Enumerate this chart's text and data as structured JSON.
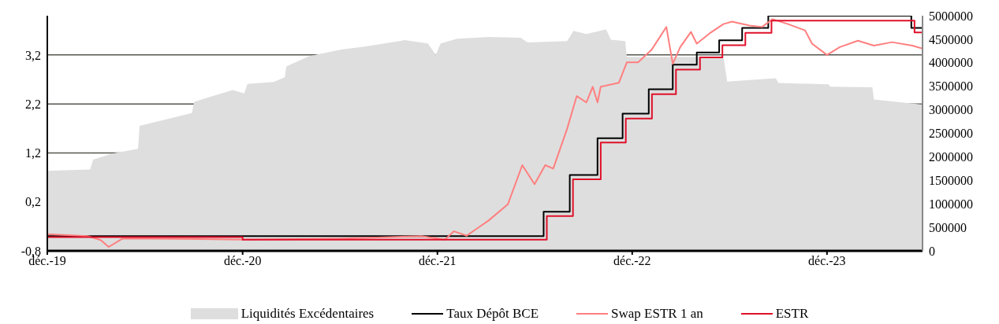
{
  "chart_data": {
    "type": "line",
    "xlim": [
      "2019-12-01",
      "2024-05-28"
    ],
    "xticks": [
      {
        "value": "2019-12-01",
        "label": "déc.-19"
      },
      {
        "value": "2020-12-01",
        "label": "déc.-20"
      },
      {
        "value": "2021-12-01",
        "label": "déc.-21"
      },
      {
        "value": "2022-12-01",
        "label": "déc.-22"
      },
      {
        "value": "2023-12-01",
        "label": "déc.-23"
      }
    ],
    "ylim": [
      -0.8,
      4.0
    ],
    "yticks": [
      {
        "value": -0.8,
        "label": "-0,8"
      },
      {
        "value": 0.2,
        "label": "0,2"
      },
      {
        "value": 1.2,
        "label": "1,2"
      },
      {
        "value": 2.2,
        "label": "2,2"
      },
      {
        "value": 3.2,
        "label": "3,2"
      }
    ],
    "y2lim": [
      0,
      5000000
    ],
    "y2ticks": [
      0,
      500000,
      1000000,
      1500000,
      2000000,
      2500000,
      3000000,
      3500000,
      4000000,
      4500000,
      5000000
    ],
    "grid": "y",
    "legend": "bottom",
    "series": [
      {
        "name": "Liquidités Excédentaires",
        "type": "area",
        "axis": "y2",
        "color": "#dedede",
        "x": [
          "2019-12-01",
          "2020-02-19",
          "2020-02-25",
          "2020-04-01",
          "2020-05-19",
          "2020-05-22",
          "2020-08-28",
          "2020-09-01",
          "2020-11-12",
          "2020-12-04",
          "2020-12-10",
          "2021-01-28",
          "2021-02-18",
          "2021-02-21",
          "2021-04-04",
          "2021-06-04",
          "2021-07-15",
          "2021-10-01",
          "2021-11-13",
          "2021-11-28",
          "2021-12-07",
          "2022-01-07",
          "2022-03-07",
          "2022-05-06",
          "2022-05-19",
          "2022-08-01",
          "2022-08-13",
          "2022-09-06",
          "2022-10-13",
          "2022-10-22",
          "2022-11-18",
          "2022-11-21",
          "2023-01-19",
          "2023-05-21",
          "2023-05-28",
          "2023-08-27",
          "2023-09-01",
          "2023-12-04",
          "2023-12-07",
          "2024-02-24",
          "2024-02-27",
          "2024-05-28"
        ],
        "values": [
          1700000,
          1730000,
          1940000,
          2070000,
          2170000,
          2660000,
          2930000,
          3170000,
          3420000,
          3350000,
          3550000,
          3590000,
          3690000,
          3920000,
          4140000,
          4280000,
          4340000,
          4480000,
          4410000,
          4170000,
          4410000,
          4510000,
          4550000,
          4530000,
          4430000,
          4460000,
          4680000,
          4610000,
          4710000,
          4490000,
          4460000,
          4120000,
          4120000,
          4120000,
          3600000,
          3670000,
          3570000,
          3540000,
          3490000,
          3480000,
          3220000,
          3110000
        ]
      },
      {
        "name": "Taux Dépôt BCE",
        "type": "step",
        "color": "#000000",
        "x": [
          "2019-12-01",
          "2022-06-18",
          "2022-08-06",
          "2022-09-27",
          "2022-11-13",
          "2023-01-01",
          "2023-02-15",
          "2023-04-01",
          "2023-05-13",
          "2023-06-25",
          "2023-08-13",
          "2024-05-07",
          "2024-05-28"
        ],
        "values": [
          -0.5,
          0,
          0.75,
          1.5,
          2.0,
          2.5,
          3.0,
          3.25,
          3.5,
          3.75,
          4.0,
          3.75,
          3.75
        ]
      },
      {
        "name": "Swap ESTR 1 an",
        "color": "#ff7f7f",
        "x": [
          "2019-12-01",
          "2020-02-15",
          "2020-03-10",
          "2020-03-25",
          "2020-04-20",
          "2020-06-15",
          "2020-12-01",
          "2021-06-01",
          "2021-11-01",
          "2021-12-15",
          "2022-01-01",
          "2022-01-25",
          "2022-02-15",
          "2022-03-07",
          "2022-04-12",
          "2022-05-09",
          "2022-06-01",
          "2022-06-21",
          "2022-07-06",
          "2022-08-01",
          "2022-08-19",
          "2022-09-06",
          "2022-09-18",
          "2022-09-27",
          "2022-10-03",
          "2022-11-06",
          "2022-11-21",
          "2022-12-12",
          "2023-01-06",
          "2023-02-03",
          "2023-02-15",
          "2023-03-01",
          "2023-03-21",
          "2023-04-01",
          "2023-04-25",
          "2023-05-21",
          "2023-06-06",
          "2023-07-09",
          "2023-08-01",
          "2023-08-21",
          "2023-09-19",
          "2023-10-21",
          "2023-11-03",
          "2023-12-01",
          "2023-12-25",
          "2024-01-28",
          "2024-02-27",
          "2024-04-01",
          "2024-05-09",
          "2024-05-28"
        ],
        "values": [
          -0.46,
          -0.5,
          -0.58,
          -0.72,
          -0.55,
          -0.55,
          -0.57,
          -0.55,
          -0.5,
          -0.57,
          -0.4,
          -0.49,
          -0.33,
          -0.18,
          0.15,
          0.95,
          0.56,
          0.95,
          0.88,
          1.69,
          2.36,
          2.23,
          2.55,
          2.23,
          2.55,
          2.63,
          3.05,
          3.05,
          3.3,
          3.77,
          3.02,
          3.36,
          3.67,
          3.43,
          3.64,
          3.83,
          3.88,
          3.8,
          3.77,
          3.93,
          3.83,
          3.7,
          3.43,
          3.2,
          3.36,
          3.49,
          3.39,
          3.46,
          3.39,
          3.33
        ]
      },
      {
        "name": "ESTR",
        "type": "step",
        "color": "#e0102a",
        "x": [
          "2019-12-01",
          "2020-12-01",
          "2022-06-24",
          "2022-08-12",
          "2022-10-03",
          "2022-11-19",
          "2023-01-07",
          "2023-02-21",
          "2023-04-07",
          "2023-05-19",
          "2023-07-01",
          "2023-08-19",
          "2024-05-13",
          "2024-05-28"
        ],
        "values": [
          -0.52,
          -0.57,
          -0.09,
          0.66,
          1.41,
          1.9,
          2.4,
          2.9,
          3.15,
          3.4,
          3.65,
          3.9,
          3.66,
          3.66
        ]
      }
    ]
  }
}
